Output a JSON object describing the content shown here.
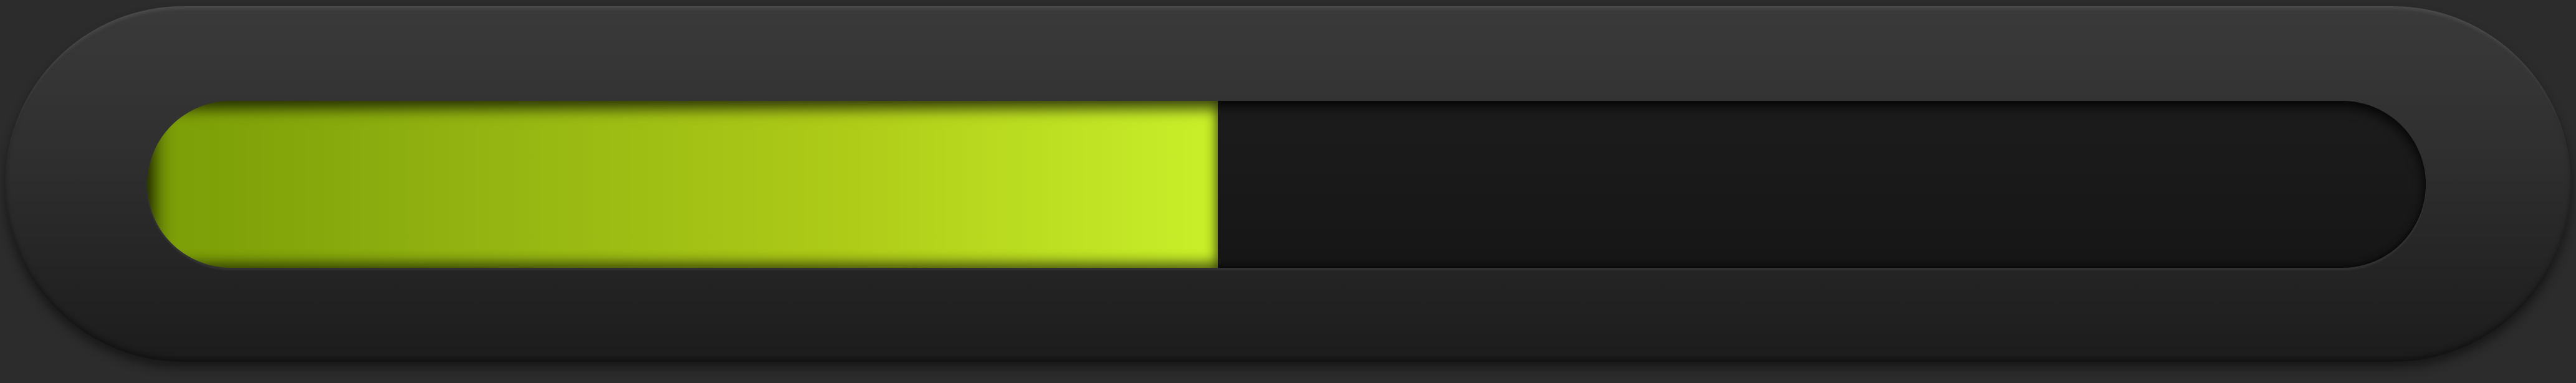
{
  "progress": {
    "value_percent": 47,
    "colors": {
      "fill_start": "#7a9c06",
      "fill_end": "#c9f02a",
      "track": "#171717",
      "frame": "#2e2e2e"
    }
  }
}
